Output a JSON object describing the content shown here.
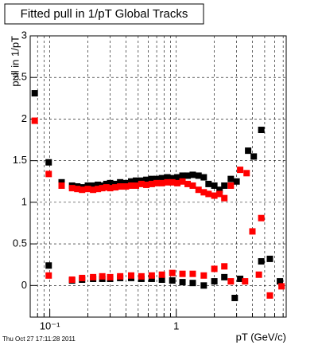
{
  "chart_data": {
    "type": "scatter",
    "title": "Fitted pull in 1/pT  Global Tracks",
    "y_label": "pull in 1/pT",
    "x_label": "pT (GeV/c)",
    "timestamp": "Thu Oct 27 17:11:28 2011",
    "xscale": "log",
    "xlim": [
      0.07,
      7.4
    ],
    "xticks": [
      {
        "value": 0.1,
        "label": "10⁻¹"
      },
      1
    ],
    "ylim": [
      -0.38,
      3
    ],
    "yticks": [
      0,
      0.5,
      1,
      1.5,
      2,
      2.5,
      3
    ],
    "grid": true,
    "series": [
      {
        "color": "#000000",
        "x": [
          0.076,
          0.098,
          0.124,
          0.15,
          0.165,
          0.18,
          0.2,
          0.22,
          0.24,
          0.26,
          0.28,
          0.3,
          0.33,
          0.36,
          0.4,
          0.44,
          0.48,
          0.53,
          0.58,
          0.64,
          0.7,
          0.77,
          0.85,
          0.93,
          1.02,
          1.12,
          1.23,
          1.35,
          1.5,
          1.65,
          1.8,
          2.0,
          2.2,
          2.4,
          2.7,
          3.0,
          3.7,
          4.1,
          4.7
        ],
        "values": [
          2.31,
          1.48,
          1.24,
          1.2,
          1.19,
          1.18,
          1.2,
          1.2,
          1.21,
          1.2,
          1.22,
          1.23,
          1.22,
          1.24,
          1.23,
          1.25,
          1.26,
          1.26,
          1.27,
          1.28,
          1.28,
          1.29,
          1.3,
          1.29,
          1.3,
          1.32,
          1.32,
          1.33,
          1.32,
          1.3,
          1.22,
          1.2,
          1.15,
          1.2,
          1.28,
          1.25,
          1.62,
          1.55,
          1.87
        ]
      },
      {
        "color": "#ff0000",
        "x": [
          0.076,
          0.098,
          0.124,
          0.15,
          0.165,
          0.18,
          0.2,
          0.22,
          0.24,
          0.26,
          0.28,
          0.3,
          0.33,
          0.36,
          0.4,
          0.44,
          0.48,
          0.53,
          0.58,
          0.64,
          0.7,
          0.77,
          0.85,
          0.93,
          1.02,
          1.12,
          1.23,
          1.35,
          1.5,
          1.65,
          1.8,
          2.0,
          2.2,
          2.4,
          2.7,
          3.2,
          3.6,
          4.0,
          4.7
        ],
        "values": [
          1.98,
          1.34,
          1.2,
          1.17,
          1.16,
          1.15,
          1.16,
          1.15,
          1.16,
          1.17,
          1.18,
          1.17,
          1.18,
          1.19,
          1.19,
          1.2,
          1.2,
          1.22,
          1.21,
          1.22,
          1.23,
          1.23,
          1.24,
          1.24,
          1.23,
          1.25,
          1.22,
          1.2,
          1.15,
          1.12,
          1.1,
          1.08,
          1.1,
          1.05,
          1.2,
          1.39,
          1.35,
          0.65,
          0.81
        ]
      },
      {
        "color": "#000000",
        "x": [
          0.098,
          0.15,
          0.18,
          0.22,
          0.26,
          0.3,
          0.36,
          0.44,
          0.53,
          0.64,
          0.77,
          0.93,
          1.12,
          1.35,
          1.65,
          2.0,
          2.4,
          2.9,
          3.2,
          4.7,
          5.5,
          6.6
        ],
        "values": [
          0.24,
          0.06,
          0.07,
          0.08,
          0.08,
          0.08,
          0.09,
          0.09,
          0.08,
          0.08,
          0.07,
          0.06,
          0.04,
          0.03,
          0.0,
          0.05,
          0.1,
          -0.15,
          0.08,
          0.29,
          0.32,
          0.05
        ]
      },
      {
        "color": "#ff0000",
        "x": [
          0.098,
          0.15,
          0.18,
          0.22,
          0.26,
          0.3,
          0.36,
          0.44,
          0.53,
          0.64,
          0.77,
          0.93,
          1.12,
          1.35,
          1.65,
          2.0,
          2.4,
          2.7,
          3.5,
          4.5,
          5.5,
          6.8
        ],
        "values": [
          0.12,
          0.07,
          0.09,
          0.1,
          0.11,
          0.1,
          0.11,
          0.12,
          0.11,
          0.12,
          0.13,
          0.15,
          0.14,
          0.14,
          0.12,
          0.2,
          0.23,
          0.05,
          0.05,
          0.13,
          -0.12,
          -0.01
        ]
      }
    ]
  }
}
